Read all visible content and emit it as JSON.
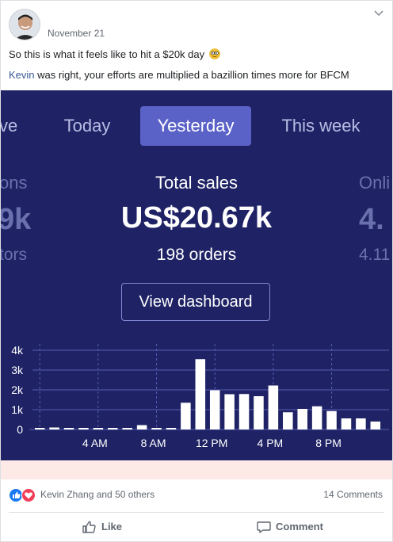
{
  "post": {
    "date": "November 21",
    "line1": "So this is what it feels like to hit a $20k day",
    "line2_mention": "Kevin",
    "line2_rest": " was right, your efforts are multiplied a bazillion times more for BFCM"
  },
  "dashboard": {
    "tabs": {
      "live": "ve",
      "today": "Today",
      "yesterday": "Yesterday",
      "week": "This week"
    },
    "left_metric": {
      "label": "ons",
      "value": "9k",
      "sub": "tors"
    },
    "center_metric": {
      "label": "Total sales",
      "value": "US$20.67k",
      "sub": "198 orders"
    },
    "right_metric": {
      "label": "Onli",
      "value": "4.",
      "sub": "4.11"
    },
    "view_button": "View dashboard",
    "colors": {
      "background": "#1f2365",
      "accent": "#5b62c7",
      "bars": "#ffffff",
      "grid": "#565cb0"
    }
  },
  "chart_data": {
    "type": "bar",
    "categories": [
      "12 AM",
      "1 AM",
      "2 AM",
      "3 AM",
      "4 AM",
      "5 AM",
      "6 AM",
      "7 AM",
      "8 AM",
      "9 AM",
      "10 AM",
      "11 AM",
      "12 PM",
      "1 PM",
      "2 PM",
      "3 PM",
      "4 PM",
      "5 PM",
      "6 PM",
      "7 PM",
      "8 PM",
      "9 PM",
      "10 PM",
      "11 PM"
    ],
    "values": [
      80,
      100,
      60,
      50,
      40,
      50,
      60,
      220,
      60,
      70,
      1350,
      3550,
      1980,
      1780,
      1790,
      1680,
      2220,
      870,
      1040,
      1170,
      930,
      560,
      560,
      400
    ],
    "y_ticks": [
      "0",
      "1k",
      "2k",
      "3k",
      "4k"
    ],
    "x_tick_labels": [
      "4 AM",
      "8 AM",
      "12 PM",
      "4 PM",
      "8 PM"
    ],
    "ylim": [
      0,
      4000
    ],
    "grid": true
  },
  "reactions": {
    "names": "Kevin Zhang and 50 others",
    "comments": "14 Comments"
  },
  "actions": {
    "like": "Like",
    "comment": "Comment"
  }
}
